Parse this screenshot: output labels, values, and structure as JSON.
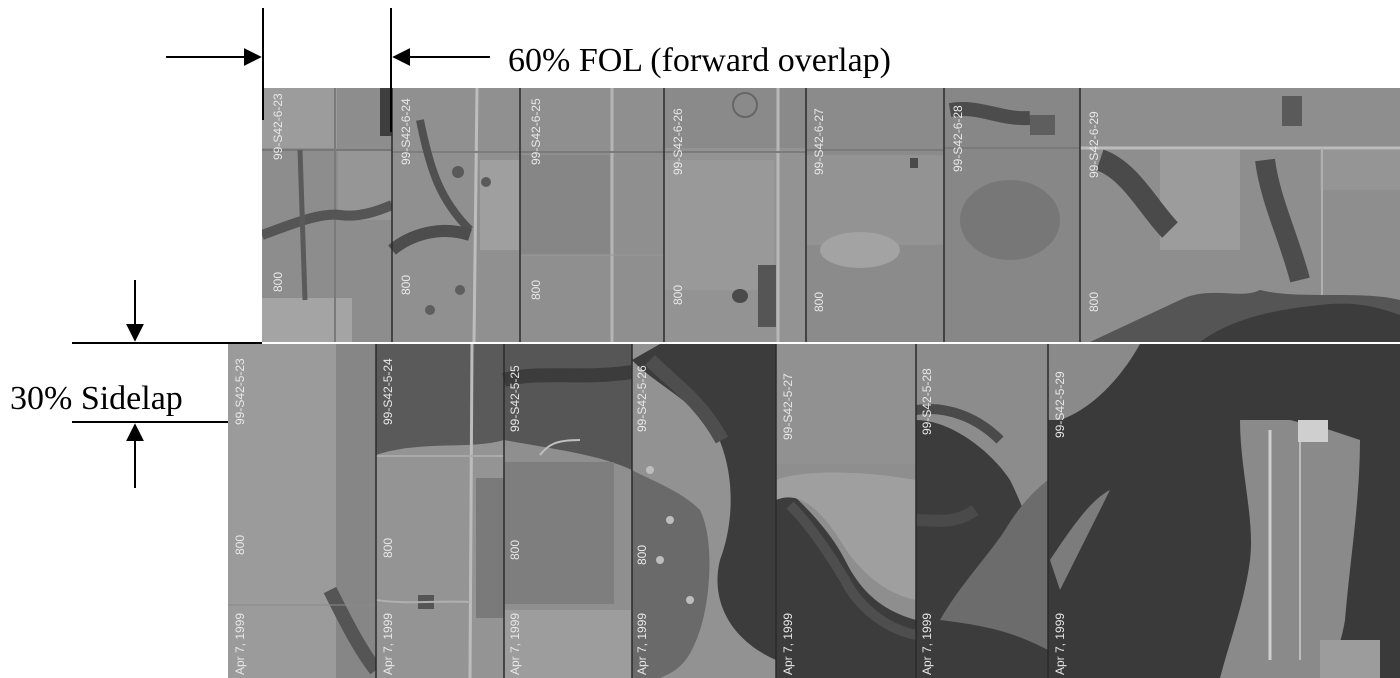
{
  "labels": {
    "forward_overlap": "60% FOL (forward overlap)",
    "sidelap": "30% Sidelap"
  },
  "colors": {
    "ink": "#000000",
    "field_light": "#9a9a9a",
    "field_mid": "#858585",
    "field_dark": "#6e6e6e",
    "water": "#3c3c3c",
    "trees": "#4e4e4e"
  },
  "strips": [
    {
      "name": "top-strip",
      "photos": [
        {
          "frame": "99-S42-6-23",
          "altitude": "800",
          "date": ""
        },
        {
          "frame": "99-S42-6-24",
          "altitude": "800",
          "date": ""
        },
        {
          "frame": "99-S42-6-25",
          "altitude": "800",
          "date": ""
        },
        {
          "frame": "99-S42-6-26",
          "altitude": "800",
          "date": ""
        },
        {
          "frame": "99-S42-6-27",
          "altitude": "800",
          "date": ""
        },
        {
          "frame": "99-S42-6-28",
          "altitude": "",
          "date": ""
        },
        {
          "frame": "99-S42-6-29",
          "altitude": "800",
          "date": ""
        }
      ]
    },
    {
      "name": "bottom-strip",
      "photos": [
        {
          "frame": "99-S42-5-23",
          "altitude": "800",
          "date": "Apr 7, 1999"
        },
        {
          "frame": "99-S42-5-24",
          "altitude": "800",
          "date": "Apr 7, 1999"
        },
        {
          "frame": "99-S42-5-25",
          "altitude": "800",
          "date": "Apr 7, 1999"
        },
        {
          "frame": "99-S42-5-26",
          "altitude": "800",
          "date": "Apr 7, 1999"
        },
        {
          "frame": "99-S42-5-27",
          "altitude": "",
          "date": "Apr 7, 1999"
        },
        {
          "frame": "99-S42-5-28",
          "altitude": "",
          "date": "Apr 7, 1999"
        },
        {
          "frame": "99-S42-5-29",
          "altitude": "",
          "date": "Apr 7, 1999"
        }
      ]
    }
  ]
}
